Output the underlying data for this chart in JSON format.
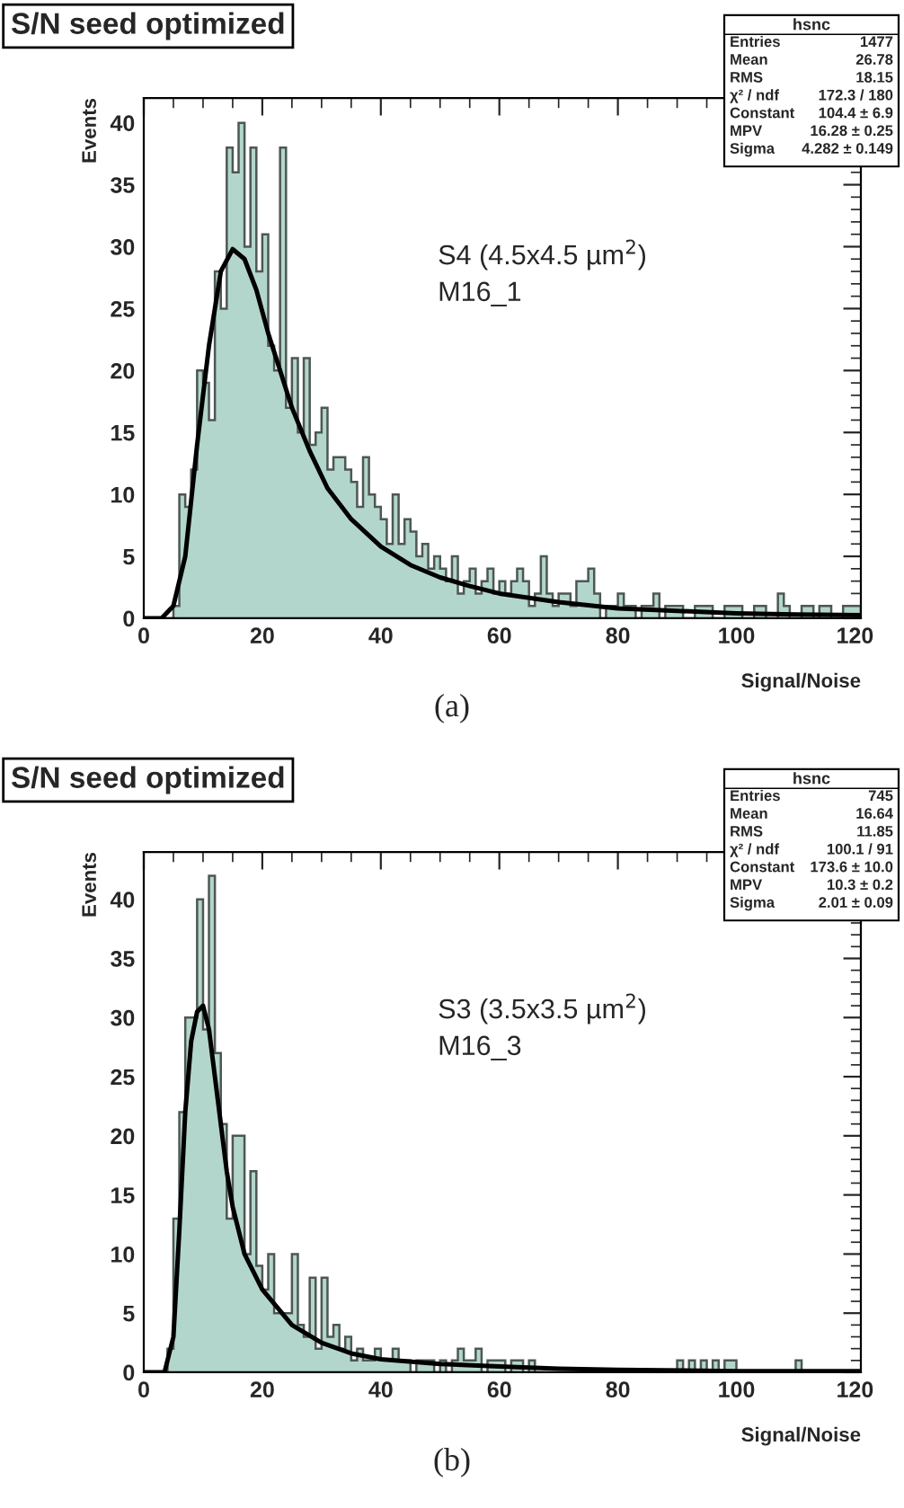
{
  "chart_data": [
    {
      "type": "histogram",
      "title": "S/N seed optimized",
      "xlabel": "Signal/Noise",
      "ylabel": "Events",
      "color": "#b3d6cc",
      "bins": [
        0,
        1,
        2,
        3,
        4,
        5,
        6,
        7,
        8,
        9,
        10,
        11,
        12,
        13,
        14,
        15,
        16,
        17,
        18,
        19,
        20,
        21,
        22,
        23,
        24,
        25,
        26,
        27,
        28,
        29,
        30,
        31,
        32,
        33,
        34,
        35,
        36,
        37,
        38,
        39,
        40,
        41,
        42,
        43,
        44,
        45,
        46,
        47,
        48,
        49,
        50,
        51,
        52,
        53,
        54,
        55,
        56,
        57,
        58,
        59,
        60,
        61,
        62,
        63,
        64,
        65,
        66,
        67,
        68,
        69,
        70,
        71,
        72,
        73,
        74,
        75,
        76,
        77,
        78,
        79,
        80,
        81,
        82,
        83,
        84,
        85,
        86,
        87,
        88,
        89,
        90,
        91,
        92,
        93,
        94,
        95,
        96,
        97,
        98,
        99,
        100,
        101,
        102,
        103,
        104,
        105,
        106,
        107,
        108,
        109,
        110,
        111,
        112,
        113,
        114,
        115,
        116,
        117,
        118,
        119,
        120,
        121
      ],
      "values": [
        0,
        0,
        0,
        0,
        0,
        1,
        10,
        9,
        12,
        20,
        19,
        16,
        28,
        25,
        38,
        36,
        40,
        30,
        38,
        28,
        31,
        22,
        20,
        38,
        17,
        21,
        15,
        21,
        14,
        15,
        17,
        12,
        13,
        13,
        12,
        11,
        9,
        13,
        10,
        9,
        8,
        6,
        10,
        6,
        8,
        7,
        5,
        6,
        4,
        5,
        4,
        3,
        5,
        2,
        3,
        4,
        2,
        3,
        4,
        2,
        3,
        2,
        3,
        4,
        3,
        1,
        2,
        5,
        2,
        1,
        2,
        2,
        1,
        3,
        3,
        4,
        2,
        0,
        1,
        1,
        2,
        1,
        1,
        0,
        1,
        1,
        2,
        0,
        1,
        1,
        1,
        0,
        0,
        1,
        1,
        1,
        0,
        0,
        1,
        1,
        1,
        0,
        0,
        1,
        1,
        0,
        0,
        2,
        1,
        0,
        0,
        1,
        1,
        0,
        1,
        1,
        0,
        0,
        1,
        1,
        1
      ],
      "series": [
        {
          "type": "line",
          "color": "#000000",
          "x": [
            0,
            3,
            5,
            7,
            9,
            11,
            13,
            15,
            17,
            19,
            21,
            23,
            25,
            28,
            31,
            35,
            40,
            45,
            50,
            55,
            60,
            70,
            80,
            90,
            100,
            110,
            121
          ],
          "values": [
            0,
            0,
            1,
            5,
            14,
            22,
            28,
            29.8,
            29,
            26.5,
            23,
            20,
            17,
            13.5,
            10.5,
            8,
            5.8,
            4.3,
            3.3,
            2.6,
            2.0,
            1.3,
            0.8,
            0.6,
            0.4,
            0.3,
            0.25
          ]
        }
      ],
      "xlim": [
        0,
        121
      ],
      "ylim": [
        0,
        42
      ],
      "xticks": [
        0,
        20,
        40,
        60,
        80,
        100,
        120
      ],
      "yticks": [
        0,
        5,
        10,
        15,
        20,
        25,
        30,
        35,
        40
      ],
      "annotations": [
        "hsnc",
        "Entries  1477",
        "Mean  26.78",
        "RMS  18.15",
        "χ² / ndf  172.3 / 180",
        "Constant  104.4 ± 6.9",
        "MPV  16.28 ± 0.25",
        "Sigma  4.282 ± 0.149",
        "S4 (4.5x4.5 µm$^{2}$)",
        "M16_1",
        "(a)"
      ]
    },
    {
      "type": "histogram",
      "title": "S/N seed optimized",
      "xlabel": "Signal/Noise",
      "ylabel": "Events",
      "color": "#b3d6cc",
      "bins": [
        0,
        1,
        2,
        3,
        4,
        5,
        6,
        7,
        8,
        9,
        10,
        11,
        12,
        13,
        14,
        15,
        16,
        17,
        18,
        19,
        20,
        21,
        22,
        23,
        24,
        25,
        26,
        27,
        28,
        29,
        30,
        31,
        32,
        33,
        34,
        35,
        36,
        37,
        38,
        39,
        40,
        41,
        42,
        43,
        44,
        45,
        46,
        47,
        48,
        49,
        50,
        51,
        52,
        53,
        54,
        55,
        56,
        57,
        58,
        59,
        60,
        61,
        62,
        63,
        64,
        65,
        66,
        67,
        68,
        69,
        70,
        71,
        72,
        73,
        74,
        75,
        76,
        77,
        78,
        79,
        80,
        81,
        82,
        83,
        84,
        85,
        86,
        87,
        88,
        89,
        90,
        91,
        92,
        93,
        94,
        95,
        96,
        97,
        98,
        99,
        100,
        101,
        102,
        103,
        104,
        105,
        106,
        107,
        108,
        109,
        110,
        111,
        112,
        113,
        114,
        115,
        116,
        117,
        118,
        119,
        120,
        121
      ],
      "values": [
        0,
        0,
        0,
        0,
        2,
        13,
        22,
        30,
        30,
        40,
        29,
        42,
        27,
        21,
        13,
        20,
        20,
        10,
        17,
        9,
        7,
        10,
        5,
        5,
        5,
        10,
        4,
        3,
        8,
        2,
        8,
        3,
        4,
        2,
        3,
        1,
        2,
        1,
        1,
        2,
        1,
        1,
        2,
        1,
        1,
        0,
        1,
        1,
        1,
        0,
        1,
        0,
        1,
        2,
        1,
        1,
        2,
        0,
        1,
        1,
        1,
        0,
        1,
        1,
        0,
        1,
        0,
        0,
        0,
        0,
        0,
        0,
        0,
        0,
        0,
        0,
        0,
        0,
        0,
        0,
        0,
        0,
        0,
        0,
        0,
        0,
        0,
        0,
        0,
        0,
        1,
        0,
        1,
        0,
        1,
        0,
        1,
        0,
        1,
        1,
        0,
        0,
        0,
        0,
        0,
        0,
        0,
        0,
        0,
        0,
        1,
        0,
        0,
        0,
        0,
        0,
        0,
        0,
        0,
        0,
        0
      ],
      "series": [
        {
          "type": "line",
          "color": "#000000",
          "x": [
            0,
            3.5,
            5,
            6,
            7,
            8,
            9,
            10,
            11,
            12,
            13,
            14,
            15,
            17,
            20,
            25,
            30,
            35,
            40,
            50,
            60,
            70,
            80,
            100,
            121
          ],
          "values": [
            0,
            0,
            3,
            12,
            22,
            28,
            30.5,
            31,
            29,
            25,
            21,
            17,
            14,
            10,
            7,
            4,
            2.5,
            1.6,
            1.1,
            0.7,
            0.5,
            0.3,
            0.2,
            0.1,
            0.1
          ]
        }
      ],
      "xlim": [
        0,
        121
      ],
      "ylim": [
        0,
        44
      ],
      "xticks": [
        0,
        20,
        40,
        60,
        80,
        100,
        120
      ],
      "yticks": [
        0,
        5,
        10,
        15,
        20,
        25,
        30,
        35,
        40
      ],
      "annotations": [
        "hsnc",
        "Entries  745",
        "Mean  16.64",
        "RMS  11.85",
        "χ² / ndf  100.1 / 91",
        "Constant  173.6 ± 10.0",
        "MPV  10.3 ± 0.2",
        "Sigma  2.01 ± 0.09",
        "S3 (3.5x3.5 µm$^{2}$)",
        "M16_3",
        "(b)"
      ]
    }
  ]
}
